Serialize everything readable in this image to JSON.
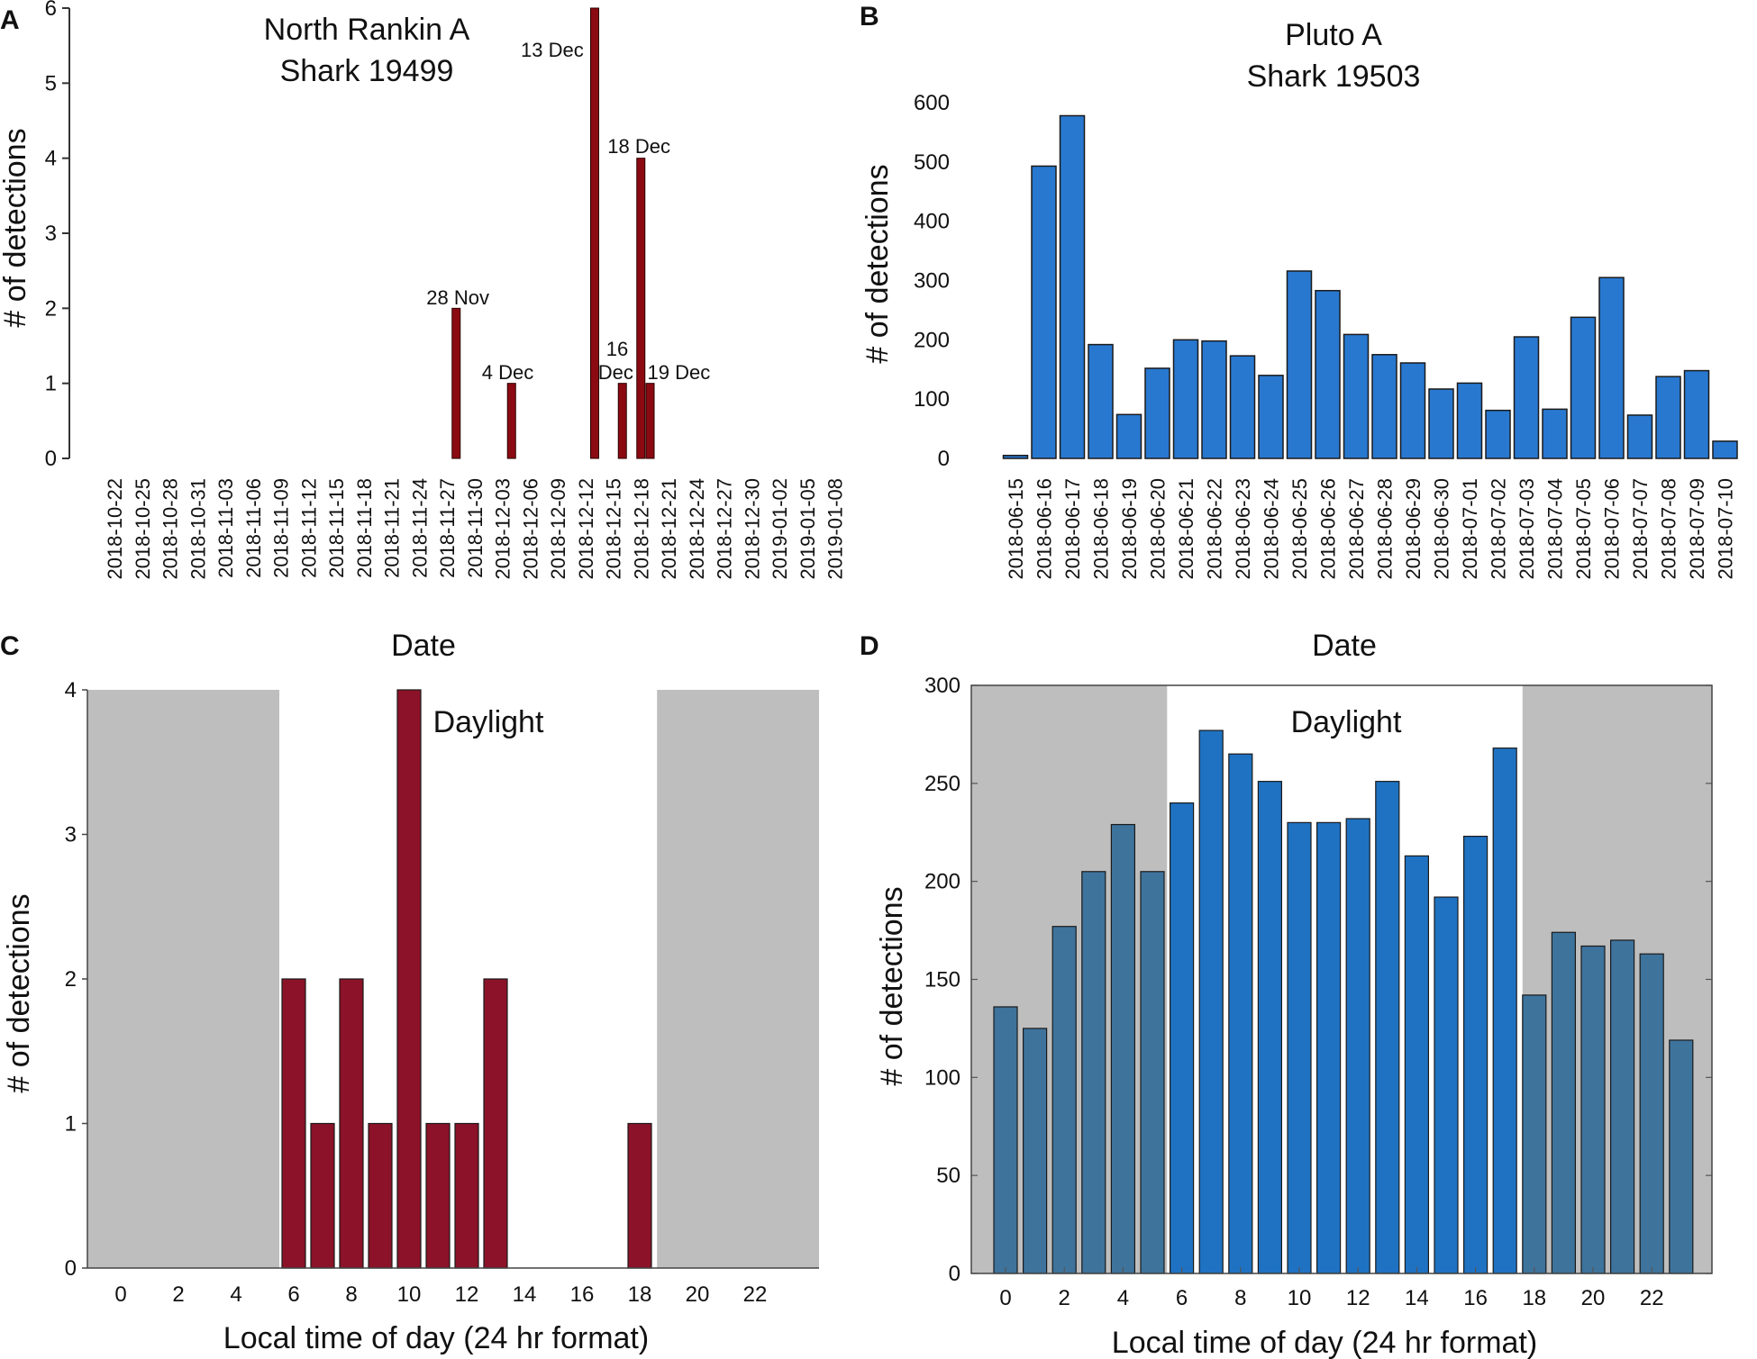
{
  "chart_data": [
    {
      "panel": "A",
      "type": "bar",
      "title": [
        "North Rankin A",
        "Shark 19499"
      ],
      "xlabel": "Date",
      "ylabel": "# of detections",
      "ylim": [
        0,
        6
      ],
      "yticks": [
        0,
        1,
        2,
        3,
        4,
        5,
        6
      ],
      "date_ticks": [
        "2018-10-22",
        "2018-10-25",
        "2018-10-28",
        "2018-10-31",
        "2018-11-03",
        "2018-11-06",
        "2018-11-09",
        "2018-11-12",
        "2018-11-15",
        "2018-11-18",
        "2018-11-21",
        "2018-11-24",
        "2018-11-27",
        "2018-11-30",
        "2018-12-03",
        "2018-12-06",
        "2018-12-09",
        "2018-12-12",
        "2018-12-15",
        "2018-12-18",
        "2018-12-21",
        "2018-12-24",
        "2018-12-27",
        "2018-12-30",
        "2019-01-02",
        "2019-01-05",
        "2019-01-08"
      ],
      "bars": [
        {
          "date": "2018-11-28",
          "value": 2
        },
        {
          "date": "2018-12-04",
          "value": 1
        },
        {
          "date": "2018-12-13",
          "value": 6
        },
        {
          "date": "2018-12-16",
          "value": 1
        },
        {
          "date": "2018-12-18",
          "value": 4
        },
        {
          "date": "2018-12-19",
          "value": 1
        }
      ],
      "annotations": [
        {
          "date": "2018-11-28",
          "lines": [
            "28 Nov"
          ]
        },
        {
          "date": "2018-12-04",
          "lines": [
            "4 Dec"
          ]
        },
        {
          "date": "2018-12-13",
          "lines": [
            "13 Dec"
          ]
        },
        {
          "date": "2018-12-16",
          "lines": [
            "16",
            "Dec"
          ]
        },
        {
          "date": "2018-12-18",
          "lines": [
            "18 Dec"
          ]
        },
        {
          "date": "2018-12-19",
          "lines": [
            "19 Dec"
          ]
        }
      ],
      "bar_color": "#8b0a12"
    },
    {
      "panel": "B",
      "type": "bar",
      "title": [
        "Pluto A",
        "Shark 19503"
      ],
      "xlabel": "Date",
      "ylabel": "# of detections",
      "ylim": [
        0,
        600
      ],
      "yticks": [
        0,
        100,
        200,
        300,
        400,
        500,
        600
      ],
      "categories": [
        "2018-06-15",
        "2018-06-16",
        "2018-06-17",
        "2018-06-18",
        "2018-06-19",
        "2018-06-20",
        "2018-06-21",
        "2018-06-22",
        "2018-06-23",
        "2018-06-24",
        "2018-06-25",
        "2018-06-26",
        "2018-06-27",
        "2018-06-28",
        "2018-06-29",
        "2018-06-30",
        "2018-07-01",
        "2018-07-02",
        "2018-07-03",
        "2018-07-04",
        "2018-07-05",
        "2018-07-06",
        "2018-07-07",
        "2018-07-08",
        "2018-07-09",
        "2018-07-10"
      ],
      "values": [
        5,
        493,
        578,
        192,
        74,
        152,
        200,
        198,
        173,
        140,
        316,
        283,
        209,
        175,
        161,
        117,
        127,
        81,
        205,
        83,
        238,
        305,
        73,
        138,
        148,
        29
      ],
      "bar_color": "#2878d0"
    },
    {
      "panel": "C",
      "type": "bar",
      "xlabel": "Local time of day (24 hr format)",
      "ylabel": "# of detections",
      "ylim": [
        0,
        4
      ],
      "yticks": [
        0,
        1,
        2,
        3,
        4
      ],
      "xticks": [
        0,
        2,
        4,
        6,
        8,
        10,
        12,
        14,
        16,
        18,
        20,
        22
      ],
      "x": [
        6,
        7,
        8,
        9,
        10,
        11,
        12,
        13,
        18
      ],
      "values": [
        2,
        1,
        2,
        1,
        4,
        1,
        1,
        2,
        1
      ],
      "daylight_hours": [
        5.5,
        18.6
      ],
      "daylight_label": "Daylight",
      "bar_color": "#8b1228",
      "night_color": "#bebebe"
    },
    {
      "panel": "D",
      "type": "bar",
      "xlabel": "Local time of day (24 hr format)",
      "ylabel": "# of detections",
      "ylim": [
        0,
        300
      ],
      "yticks": [
        0,
        50,
        100,
        150,
        200,
        250,
        300
      ],
      "xticks": [
        0,
        2,
        4,
        6,
        8,
        10,
        12,
        14,
        16,
        18,
        20,
        22
      ],
      "x": [
        0,
        1,
        2,
        3,
        4,
        5,
        6,
        7,
        8,
        9,
        10,
        11,
        12,
        13,
        14,
        15,
        16,
        17,
        18,
        19,
        20,
        21,
        22,
        23
      ],
      "values": [
        136,
        125,
        177,
        205,
        229,
        205,
        240,
        277,
        265,
        251,
        230,
        230,
        232,
        251,
        213,
        192,
        223,
        268,
        142,
        174,
        167,
        170,
        163,
        119
      ],
      "daylight_hours": [
        5.5,
        17.6
      ],
      "daylight_label": "Daylight",
      "bar_color_day": "#1f72c2",
      "bar_color_night": "#3e739c",
      "night_color": "#bebebe"
    }
  ]
}
